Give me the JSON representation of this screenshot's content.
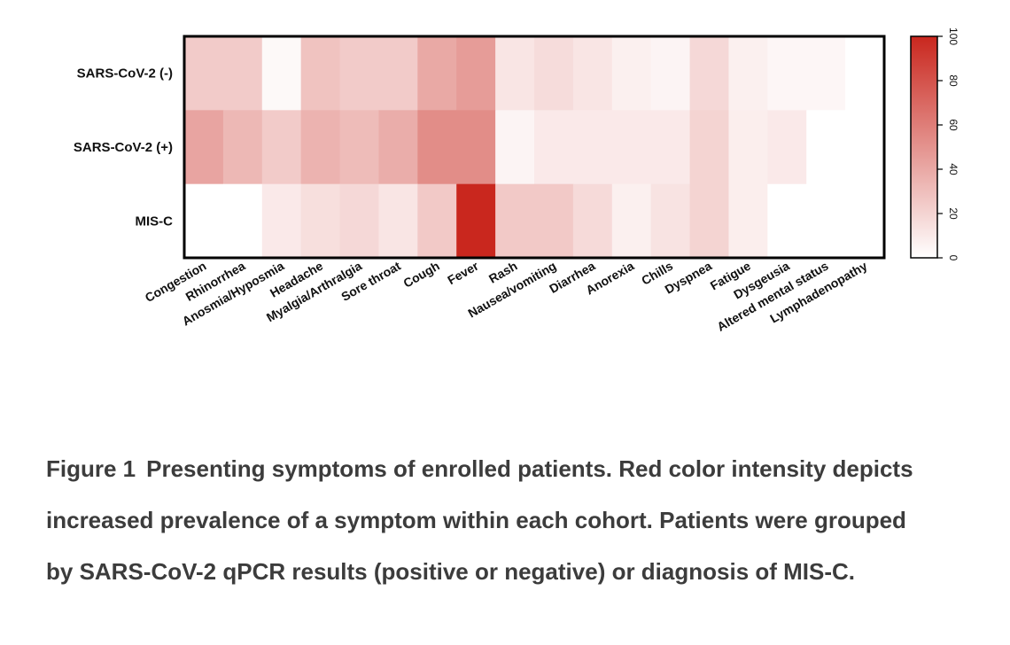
{
  "chart_data": {
    "type": "heatmap",
    "rows": [
      "SARS-CoV-2 (-)",
      "SARS-CoV-2 (+)",
      "MIS-C"
    ],
    "columns": [
      "Congestion",
      "Rhinorrhea",
      "Anosmia/Hyposmia",
      "Headache",
      "Myalgia/Arthralgia",
      "Sore throat",
      "Cough",
      "Fever",
      "Rash",
      "Nausea/vomiting",
      "Diarrhea",
      "Anorexia",
      "Chills",
      "Dyspnea",
      "Fatigue",
      "Dysgeusia",
      "Altered mental status",
      "Lymphadenopathy"
    ],
    "values": [
      [
        24,
        24,
        3,
        28,
        24,
        24,
        40,
        46,
        12,
        16,
        12,
        7,
        5,
        18,
        7,
        4,
        4,
        0
      ],
      [
        42,
        33,
        24,
        35,
        31,
        38,
        53,
        53,
        5,
        10,
        10,
        10,
        10,
        20,
        8,
        10,
        0,
        0
      ],
      [
        0,
        0,
        10,
        15,
        18,
        12,
        25,
        100,
        25,
        25,
        17,
        7,
        13,
        20,
        8,
        0,
        0,
        0
      ]
    ],
    "colorbar": {
      "min": 0,
      "max": 100,
      "ticks": [
        0,
        20,
        40,
        60,
        80,
        100
      ],
      "low_color": "#ffffff",
      "high_color": "#c9271e"
    }
  },
  "caption": {
    "label": "Figure 1",
    "text": "Presenting symptoms of enrolled patients. Red color intensity depicts increased prevalence of a symptom within each cohort. Patients were grouped by SARS-CoV-2 qPCR results (positive or negative) or diagnosis of MIS-C."
  }
}
